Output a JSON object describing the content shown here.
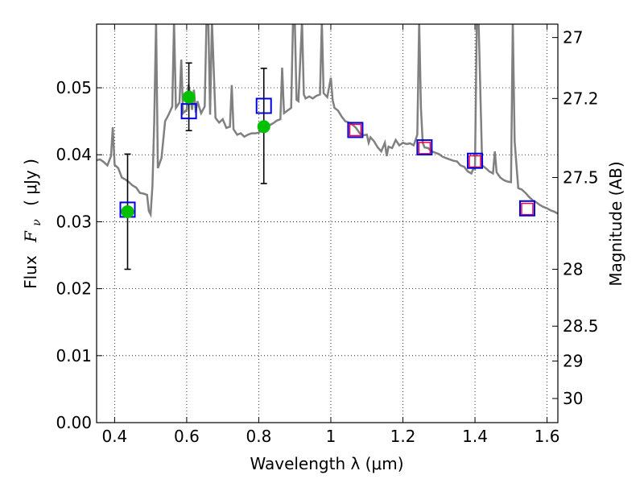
{
  "chart_data": {
    "type": "scatter",
    "xlabel": "Wavelength  λ (μm)",
    "ylabel_text": "Flux",
    "ylabel_math": "F",
    "ylabel_math_sub": "ν",
    "ylabel_units": "( μJy )",
    "right_ylabel": "Magnitude (AB)",
    "xlim": [
      0.35,
      1.63
    ],
    "ylim": [
      0.0,
      0.0595
    ],
    "x_ticks": [
      0.4,
      0.6,
      0.8,
      1.0,
      1.2,
      1.4,
      1.6
    ],
    "x_tick_labels": [
      "0.4",
      "0.6",
      "0.8",
      "1",
      "1.2",
      "1.4",
      "1.6"
    ],
    "y_ticks": [
      0.0,
      0.01,
      0.02,
      0.03,
      0.04,
      0.05
    ],
    "y_tick_labels": [
      "0.00",
      "0.01",
      "0.02",
      "0.03",
      "0.04",
      "0.05"
    ],
    "mag_ticks": [
      {
        "flux": 0.0575,
        "label": "27"
      },
      {
        "flux": 0.0484,
        "label": "27.2"
      },
      {
        "flux": 0.0366,
        "label": "27.5"
      },
      {
        "flux": 0.0229,
        "label": "28"
      },
      {
        "flux": 0.0144,
        "label": "28.5"
      },
      {
        "flux": 0.0092,
        "label": "29"
      },
      {
        "flux": 0.0036,
        "label": "30"
      }
    ],
    "grid": true,
    "colors": {
      "sed": "#808080",
      "observed": "#00c000",
      "model_box": "#0000dd",
      "synthetic_box": "#ee0044",
      "errorbar": "#000000"
    },
    "sed_curve": [
      [
        0.35,
        0.0392
      ],
      [
        0.36,
        0.0393
      ],
      [
        0.37,
        0.0389
      ],
      [
        0.38,
        0.0384
      ],
      [
        0.39,
        0.0398
      ],
      [
        0.395,
        0.0441
      ],
      [
        0.4,
        0.0385
      ],
      [
        0.41,
        0.038
      ],
      [
        0.42,
        0.0366
      ],
      [
        0.43,
        0.0363
      ],
      [
        0.44,
        0.0359
      ],
      [
        0.45,
        0.0354
      ],
      [
        0.46,
        0.0351
      ],
      [
        0.47,
        0.0343
      ],
      [
        0.48,
        0.0342
      ],
      [
        0.49,
        0.034
      ],
      [
        0.495,
        0.0316
      ],
      [
        0.5,
        0.0311
      ],
      [
        0.505,
        0.0354
      ],
      [
        0.51,
        0.045
      ],
      [
        0.515,
        0.06
      ],
      [
        0.52,
        0.038
      ],
      [
        0.53,
        0.0395
      ],
      [
        0.54,
        0.045
      ],
      [
        0.55,
        0.046
      ],
      [
        0.56,
        0.0472
      ],
      [
        0.565,
        0.06
      ],
      [
        0.57,
        0.047
      ],
      [
        0.58,
        0.0478
      ],
      [
        0.585,
        0.0542
      ],
      [
        0.59,
        0.0462
      ],
      [
        0.6,
        0.0467
      ],
      [
        0.605,
        0.0505
      ],
      [
        0.61,
        0.0488
      ],
      [
        0.615,
        0.0467
      ],
      [
        0.62,
        0.0497
      ],
      [
        0.625,
        0.0463
      ],
      [
        0.63,
        0.048
      ],
      [
        0.64,
        0.0462
      ],
      [
        0.65,
        0.0472
      ],
      [
        0.655,
        0.06
      ],
      [
        0.66,
        0.06
      ],
      [
        0.665,
        0.046
      ],
      [
        0.67,
        0.06
      ],
      [
        0.68,
        0.0455
      ],
      [
        0.69,
        0.0448
      ],
      [
        0.7,
        0.0453
      ],
      [
        0.71,
        0.044
      ],
      [
        0.72,
        0.0442
      ],
      [
        0.725,
        0.0504
      ],
      [
        0.73,
        0.0438
      ],
      [
        0.74,
        0.043
      ],
      [
        0.75,
        0.0432
      ],
      [
        0.76,
        0.0427
      ],
      [
        0.77,
        0.043
      ],
      [
        0.78,
        0.0432
      ],
      [
        0.79,
        0.0432
      ],
      [
        0.8,
        0.0433
      ],
      [
        0.81,
        0.0437
      ],
      [
        0.82,
        0.044
      ],
      [
        0.83,
        0.0444
      ],
      [
        0.84,
        0.0447
      ],
      [
        0.85,
        0.0451
      ],
      [
        0.86,
        0.0453
      ],
      [
        0.865,
        0.053
      ],
      [
        0.87,
        0.0462
      ],
      [
        0.88,
        0.0466
      ],
      [
        0.89,
        0.047
      ],
      [
        0.895,
        0.06
      ],
      [
        0.9,
        0.06
      ],
      [
        0.905,
        0.0482
      ],
      [
        0.91,
        0.048
      ],
      [
        0.92,
        0.06
      ],
      [
        0.925,
        0.049
      ],
      [
        0.93,
        0.0484
      ],
      [
        0.94,
        0.0487
      ],
      [
        0.95,
        0.0484
      ],
      [
        0.96,
        0.0488
      ],
      [
        0.97,
        0.049
      ],
      [
        0.975,
        0.06
      ],
      [
        0.98,
        0.0492
      ],
      [
        0.99,
        0.0486
      ],
      [
        1.0,
        0.0515
      ],
      [
        1.005,
        0.0482
      ],
      [
        1.01,
        0.047
      ],
      [
        1.02,
        0.0466
      ],
      [
        1.03,
        0.0457
      ],
      [
        1.04,
        0.045
      ],
      [
        1.05,
        0.0448
      ],
      [
        1.06,
        0.0445
      ],
      [
        1.07,
        0.044
      ],
      [
        1.08,
        0.0432
      ],
      [
        1.09,
        0.0429
      ],
      [
        1.1,
        0.043
      ],
      [
        1.105,
        0.0418
      ],
      [
        1.11,
        0.0426
      ],
      [
        1.12,
        0.042
      ],
      [
        1.13,
        0.0411
      ],
      [
        1.14,
        0.0405
      ],
      [
        1.15,
        0.0418
      ],
      [
        1.155,
        0.0398
      ],
      [
        1.16,
        0.0412
      ],
      [
        1.17,
        0.041
      ],
      [
        1.18,
        0.0422
      ],
      [
        1.19,
        0.0414
      ],
      [
        1.2,
        0.0418
      ],
      [
        1.21,
        0.0416
      ],
      [
        1.22,
        0.0417
      ],
      [
        1.23,
        0.0414
      ],
      [
        1.24,
        0.043
      ],
      [
        1.245,
        0.06
      ],
      [
        1.25,
        0.047
      ],
      [
        1.255,
        0.0418
      ],
      [
        1.26,
        0.0411
      ],
      [
        1.27,
        0.041
      ],
      [
        1.28,
        0.0405
      ],
      [
        1.29,
        0.0403
      ],
      [
        1.3,
        0.0401
      ],
      [
        1.31,
        0.0397
      ],
      [
        1.32,
        0.0395
      ],
      [
        1.33,
        0.0393
      ],
      [
        1.34,
        0.0391
      ],
      [
        1.35,
        0.039
      ],
      [
        1.36,
        0.0384
      ],
      [
        1.37,
        0.0382
      ],
      [
        1.38,
        0.0375
      ],
      [
        1.39,
        0.0372
      ],
      [
        1.395,
        0.0379
      ],
      [
        1.4,
        0.0378
      ],
      [
        1.405,
        0.06
      ],
      [
        1.41,
        0.06
      ],
      [
        1.42,
        0.0384
      ],
      [
        1.43,
        0.038
      ],
      [
        1.44,
        0.0375
      ],
      [
        1.45,
        0.0372
      ],
      [
        1.455,
        0.0405
      ],
      [
        1.46,
        0.0374
      ],
      [
        1.47,
        0.0366
      ],
      [
        1.48,
        0.0362
      ],
      [
        1.49,
        0.036
      ],
      [
        1.5,
        0.0359
      ],
      [
        1.505,
        0.06
      ],
      [
        1.51,
        0.042
      ],
      [
        1.52,
        0.035
      ],
      [
        1.53,
        0.0348
      ],
      [
        1.54,
        0.0343
      ],
      [
        1.55,
        0.0337
      ],
      [
        1.56,
        0.0332
      ],
      [
        1.57,
        0.0329
      ],
      [
        1.58,
        0.0325
      ],
      [
        1.59,
        0.0322
      ],
      [
        1.6,
        0.032
      ],
      [
        1.61,
        0.0317
      ],
      [
        1.62,
        0.0315
      ],
      [
        1.63,
        0.0312
      ]
    ],
    "observed_points": [
      {
        "x": 0.436,
        "y": 0.0315,
        "err_low": 0.0229,
        "err_high": 0.0401
      },
      {
        "x": 0.606,
        "y": 0.0486,
        "err_low": 0.0436,
        "err_high": 0.0537
      },
      {
        "x": 0.814,
        "y": 0.0442,
        "err_low": 0.0357,
        "err_high": 0.0529
      }
    ],
    "model_points": [
      {
        "x": 0.436,
        "y": 0.0318
      },
      {
        "x": 0.606,
        "y": 0.0465
      },
      {
        "x": 0.814,
        "y": 0.0473
      },
      {
        "x": 1.068,
        "y": 0.0437
      },
      {
        "x": 1.26,
        "y": 0.0411
      },
      {
        "x": 1.4,
        "y": 0.0391
      },
      {
        "x": 1.545,
        "y": 0.032
      }
    ],
    "synthetic_points": [
      {
        "x": 1.068,
        "y": 0.0437
      },
      {
        "x": 1.26,
        "y": 0.041
      },
      {
        "x": 1.4,
        "y": 0.039
      },
      {
        "x": 1.545,
        "y": 0.0319
      }
    ]
  }
}
